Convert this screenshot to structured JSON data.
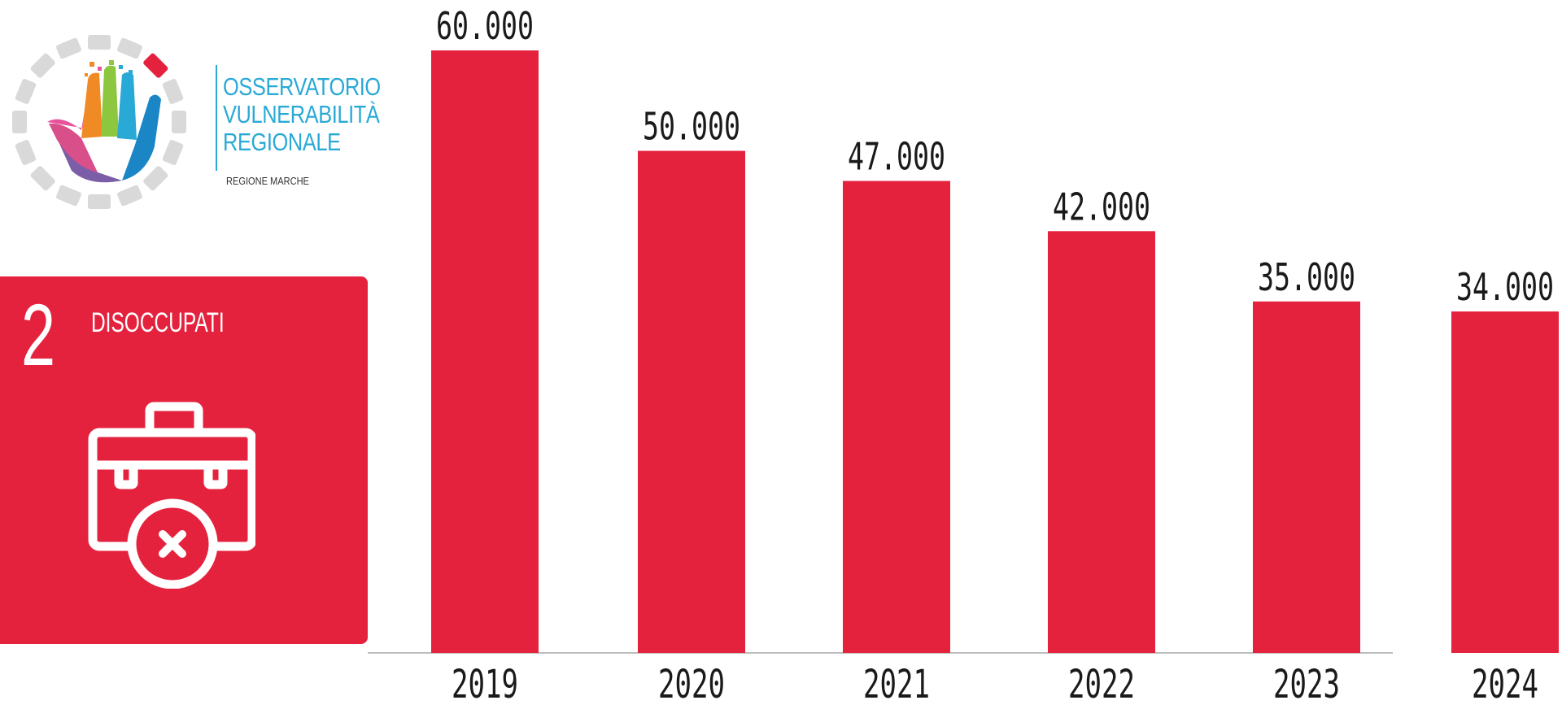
{
  "brand": {
    "title_lines": [
      "OSSERVATORIO",
      "VULNERABILITÀ",
      "REGIONALE"
    ],
    "subtitle": "REGIONE MARCHE",
    "colors": {
      "ring": "#d9d9d9",
      "ring_accent": "#e5223d",
      "text": "#29a9d6"
    }
  },
  "indicator": {
    "number": "2",
    "label": "DISOCCUPATI",
    "icon": "briefcase-x-icon",
    "color": "#e5223d"
  },
  "chart_data": {
    "type": "bar",
    "categories": [
      "2019",
      "2020",
      "2021",
      "2022",
      "2023",
      "2024"
    ],
    "values": [
      60000,
      50000,
      47000,
      42000,
      35000,
      34000
    ],
    "value_labels": [
      "60.000",
      "50.000",
      "47.000",
      "42.000",
      "35.000",
      "34.000"
    ],
    "title": "",
    "xlabel": "",
    "ylabel": "",
    "ylim": [
      0,
      60000
    ],
    "bar_color": "#e5223d",
    "grid": false,
    "legend": "none"
  }
}
